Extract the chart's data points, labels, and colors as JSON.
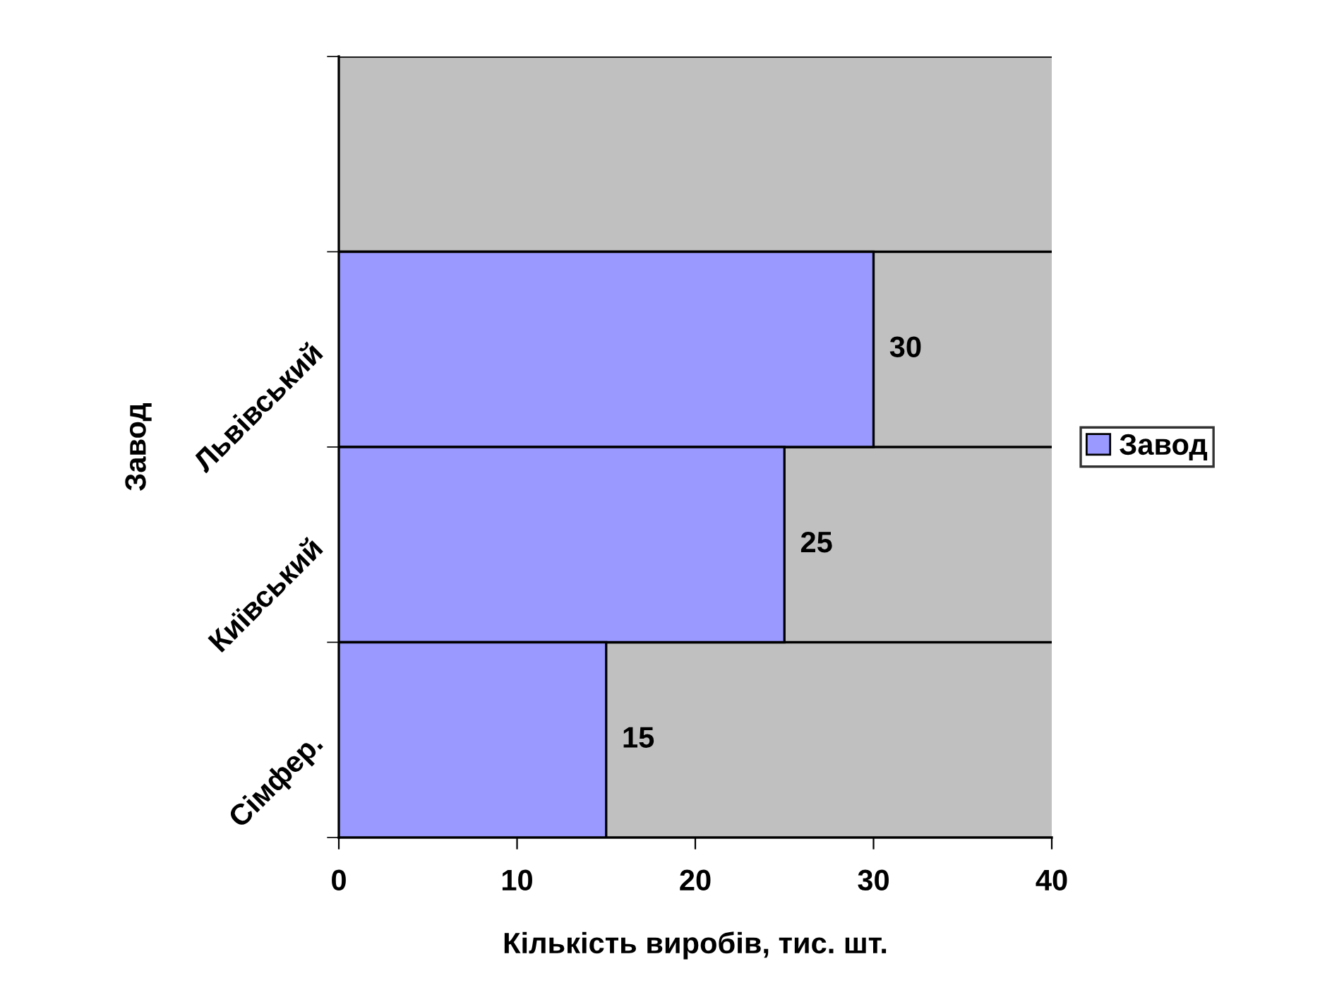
{
  "chart_data": {
    "type": "bar",
    "orientation": "horizontal",
    "xlabel": "Кількість виробів, тис. шт.",
    "ylabel": "Завод",
    "categories": [
      null,
      "Львівський",
      "Київський",
      "Сімфер."
    ],
    "series": [
      {
        "name": "Завод",
        "color": "#9999ff",
        "values": [
          null,
          30,
          25,
          15
        ]
      }
    ],
    "xlim": [
      0,
      40
    ],
    "xticks": [
      0,
      10,
      20,
      30,
      40
    ],
    "grid": "y",
    "legend": "right",
    "data_labels": true
  }
}
